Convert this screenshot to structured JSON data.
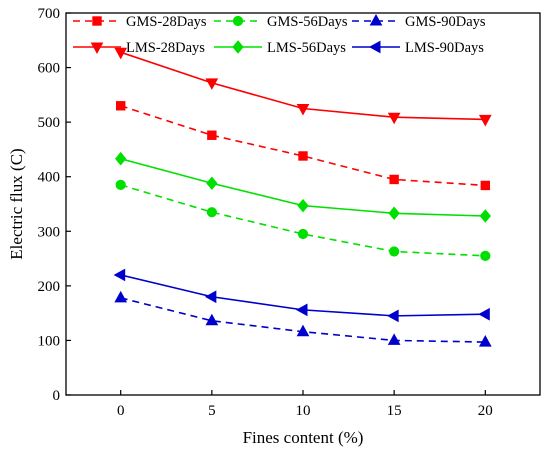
{
  "chart_data": {
    "type": "line",
    "xlabel": "Fines content (%)",
    "ylabel": "Electric flux (C)",
    "xlim": [
      -3,
      23
    ],
    "ylim": [
      0,
      700
    ],
    "x_ticks": [
      0,
      5,
      10,
      15,
      20
    ],
    "y_ticks": [
      0,
      100,
      200,
      300,
      400,
      500,
      600,
      700
    ],
    "x": [
      0,
      5,
      10,
      15,
      20
    ],
    "grid": false,
    "legend_position": "top",
    "series": [
      {
        "name": "GMS-28Days",
        "values": [
          530,
          476,
          438,
          395,
          384
        ],
        "color": "#ff0000",
        "dash": true,
        "marker": "square"
      },
      {
        "name": "LMS-28Days",
        "values": [
          628,
          572,
          525,
          509,
          505
        ],
        "color": "#ff0000",
        "dash": false,
        "marker": "triangle-down"
      },
      {
        "name": "GMS-56Days",
        "values": [
          385,
          335,
          295,
          263,
          255
        ],
        "color": "#00e000",
        "dash": true,
        "marker": "circle"
      },
      {
        "name": "LMS-56Days",
        "values": [
          433,
          388,
          347,
          333,
          328
        ],
        "color": "#00e000",
        "dash": false,
        "marker": "diamond"
      },
      {
        "name": "GMS-90Days",
        "values": [
          178,
          136,
          116,
          100,
          97
        ],
        "color": "#0000cc",
        "dash": true,
        "marker": "triangle-up"
      },
      {
        "name": "LMS-90Days",
        "values": [
          220,
          180,
          156,
          145,
          148
        ],
        "color": "#0000cc",
        "dash": false,
        "marker": "triangle-left"
      }
    ]
  }
}
